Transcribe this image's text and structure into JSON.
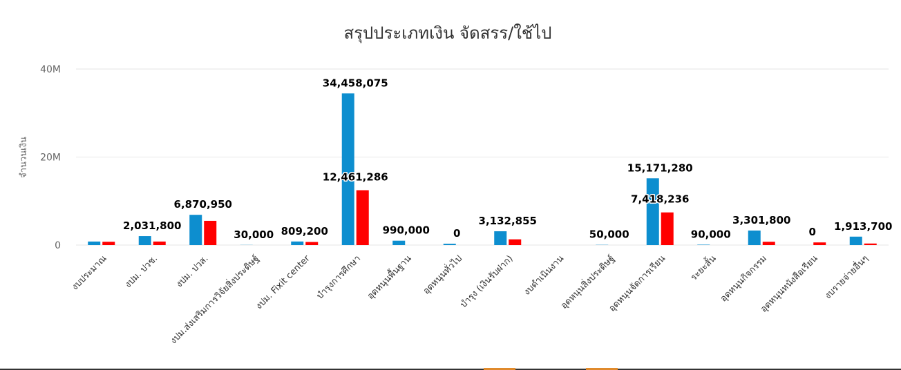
{
  "colors": {
    "allocated": "#0d8ecf",
    "spent": "#ff0000",
    "grid": "#e6e6e6"
  },
  "chart_data": {
    "type": "bar",
    "title": "สรุปประเภทเงิน จัดสรร/ใช้ไป",
    "xlabel": "",
    "ylabel": "จำนวนเงิน",
    "ylim": [
      0,
      40000000
    ],
    "yticks": [
      0,
      20000000,
      40000000
    ],
    "ytick_labels": [
      "0",
      "20M",
      "40M"
    ],
    "grid": true,
    "legend": "none",
    "categories": [
      "งบประมาณ",
      "งปม. ปวช.",
      "งปม. ปวส.",
      "งปม.ส่งเสริมการวิจัยสิ่งประดิษฐ์",
      "งปม. Fixit center",
      "บำรุงการศึกษา",
      "อุดหนุนพื้นฐาน",
      "อุดหนุนทั่วไป",
      "บำรุง (เงินรับฝาก)",
      "งบดำเนินงาน",
      "อุดหนุนสิ่งประดิษฐ์",
      "อุดหนุนจัดการเรียน",
      "ระยะสั้น",
      "อุดหนุนกิจกรรม",
      "อุดหนุนหนังสือเรียน",
      "งบรายจ่ายอื่นๆ"
    ],
    "series": [
      {
        "values": [
          800000,
          2031800,
          6870950,
          30000,
          809200,
          34458075,
          990000,
          300000,
          3132855,
          0,
          50000,
          15171280,
          90000,
          3301800,
          0,
          1913700
        ]
      },
      {
        "values": [
          750000,
          800000,
          5500000,
          0,
          700000,
          12461286,
          0,
          0,
          1300000,
          0,
          0,
          7418236,
          0,
          750000,
          600000,
          350000
        ]
      }
    ],
    "data_labels": [
      {
        "category_index": 1,
        "text": "2,031,800"
      },
      {
        "category_index": 2,
        "text": "6,870,950"
      },
      {
        "category_index": 3,
        "text": "30,000"
      },
      {
        "category_index": 4,
        "text": "809,200"
      },
      {
        "category_index": 5,
        "text": "34,458,075"
      },
      {
        "category_index": 5,
        "text": "12,461,286"
      },
      {
        "category_index": 6,
        "text": "990,000"
      },
      {
        "category_index": 7,
        "text": "0"
      },
      {
        "category_index": 8,
        "text": "3,132,855"
      },
      {
        "category_index": 10,
        "text": "50,000"
      },
      {
        "category_index": 11,
        "text": "15,171,280"
      },
      {
        "category_index": 11,
        "text": "7,418,236"
      },
      {
        "category_index": 12,
        "text": "90,000"
      },
      {
        "category_index": 13,
        "text": "3,301,800"
      },
      {
        "category_index": 14,
        "text": "0"
      },
      {
        "category_index": 15,
        "text": "1,913,700"
      }
    ]
  }
}
